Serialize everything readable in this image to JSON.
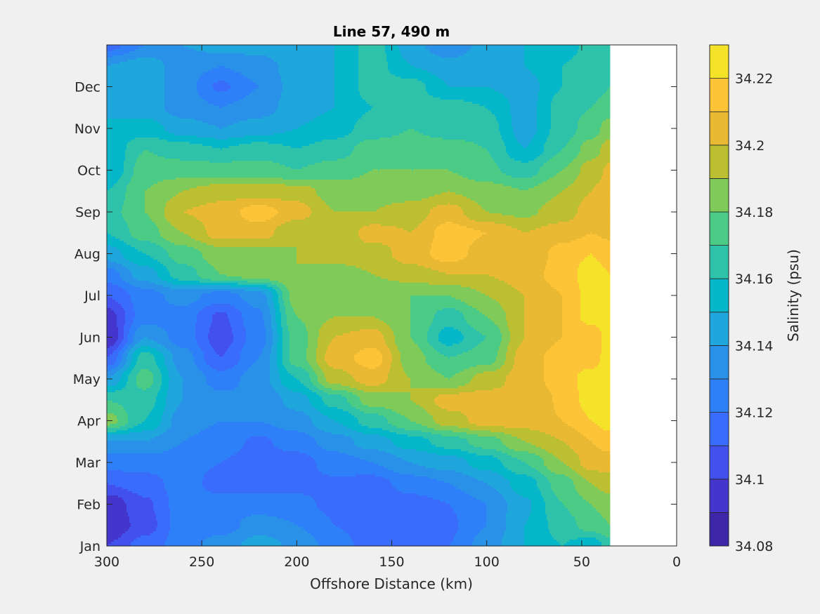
{
  "chart_data": {
    "type": "heatmap",
    "subtype": "filled-contour",
    "title": "Line 57, 490 m",
    "xlabel": "Offshore Distance (km)",
    "ylabel": "",
    "xlim": [
      300,
      0
    ],
    "ylim": [
      1,
      13
    ],
    "x_data_extent": [
      300,
      35
    ],
    "xticks": [
      300,
      250,
      200,
      150,
      100,
      50,
      0
    ],
    "xtick_labels": [
      "300",
      "250",
      "200",
      "150",
      "100",
      "50",
      "0"
    ],
    "yticks": [
      1,
      2,
      3,
      4,
      5,
      6,
      7,
      8,
      9,
      10,
      11,
      12
    ],
    "ytick_labels": [
      "Jan",
      "Feb",
      "Mar",
      "Apr",
      "May",
      "Jun",
      "Jul",
      "Aug",
      "Sep",
      "Oct",
      "Nov",
      "Dec"
    ],
    "colorbar": {
      "label": "Salinity (psu)",
      "range": [
        34.08,
        34.23
      ],
      "level_step": 0.01,
      "ticks": [
        34.08,
        34.1,
        34.12,
        34.14,
        34.16,
        34.18,
        34.2,
        34.22
      ],
      "tick_labels": [
        "34.08",
        "34.1",
        "34.12",
        "34.14",
        "34.16",
        "34.18",
        "34.2",
        "34.22"
      ],
      "colors": [
        "#3e26a8",
        "#4436cc",
        "#4250ee",
        "#3a6cfc",
        "#2e80f8",
        "#2a91e8",
        "#1fa6dc",
        "#06b7c9",
        "#2ec2aa",
        "#4ccb86",
        "#80ca5a",
        "#bbbf31",
        "#eab933",
        "#fec438",
        "#f5e32a"
      ]
    },
    "grid": {
      "distance_km": [
        300,
        280,
        260,
        240,
        220,
        200,
        180,
        160,
        140,
        120,
        100,
        80,
        60,
        45,
        35
      ],
      "month": [
        1,
        1.5,
        2,
        2.5,
        3,
        3.5,
        4,
        4.5,
        5,
        5.5,
        6,
        6.5,
        7,
        7.5,
        8,
        8.5,
        9,
        9.5,
        10,
        10.5,
        11,
        11.5,
        12,
        12.5,
        13
      ],
      "level_index_rows": [
        [
          2,
          3.5,
          4.5,
          5.5,
          6.5,
          5.8,
          4.5,
          3.5,
          3.5,
          4,
          5.5,
          7,
          8,
          7.2,
          8.5
        ],
        [
          1,
          2.5,
          4.5,
          4.5,
          5.5,
          5,
          4,
          3.5,
          3.5,
          3.8,
          5,
          7,
          8.5,
          9.5,
          10
        ],
        [
          1.2,
          2.8,
          4.5,
          4.5,
          4.5,
          4.2,
          3.8,
          3,
          3.5,
          4,
          5,
          6.8,
          9,
          10,
          10.5
        ],
        [
          3,
          3.5,
          4.5,
          3.5,
          3.5,
          3.8,
          3.8,
          3.5,
          4.5,
          5,
          6,
          7.5,
          9.5,
          11,
          11.5
        ],
        [
          4.5,
          4.5,
          4.5,
          4,
          3.5,
          3.5,
          4.5,
          5,
          6,
          6.5,
          7.5,
          9,
          11,
          12.5,
          12.5
        ],
        [
          6,
          6,
          5,
          4.5,
          3.8,
          4.5,
          5.5,
          6.5,
          7.5,
          8.5,
          9.5,
          11,
          12,
          13,
          13.5
        ],
        [
          10.5,
          8,
          5.5,
          5,
          5,
          5.5,
          7,
          8.5,
          10,
          11.5,
          12.5,
          12.5,
          13,
          14,
          14.5
        ],
        [
          9,
          8.5,
          6,
          5.3,
          5,
          6.5,
          8.5,
          10.5,
          11,
          12.5,
          12.5,
          12,
          13.2,
          14.5,
          14.5
        ],
        [
          6,
          9.5,
          6,
          4.5,
          5.5,
          8,
          11.5,
          12.5,
          11,
          10,
          11.5,
          12.5,
          13.5,
          14.5,
          14.5
        ],
        [
          3,
          8.5,
          5.5,
          3,
          5,
          9.5,
          12.5,
          13.5,
          10.5,
          9,
          9.5,
          12.5,
          13.5,
          13.5,
          14.5
        ],
        [
          1,
          6,
          4.5,
          2.5,
          4.5,
          9.5,
          12,
          12.5,
          10,
          7.5,
          9,
          12,
          13,
          13.2,
          14.5
        ],
        [
          1.5,
          4.5,
          4.5,
          2.8,
          4.8,
          10,
          11,
          11,
          10,
          8.5,
          10,
          12,
          13,
          14.5,
          14.5
        ],
        [
          3,
          4.5,
          5.5,
          4.5,
          5.5,
          10.5,
          11,
          10,
          10,
          10,
          11,
          12,
          13,
          14.5,
          14.5
        ],
        [
          4.5,
          6.5,
          8.5,
          10,
          10.5,
          11,
          10.5,
          11,
          11.5,
          12,
          12,
          12.5,
          13.5,
          14.5,
          14
        ],
        [
          6.5,
          8,
          9.5,
          10.5,
          10.5,
          11,
          11.5,
          11.5,
          12.5,
          13.5,
          12.5,
          12,
          13.5,
          14,
          13.5
        ],
        [
          8,
          9.5,
          11,
          12.5,
          12.5,
          11,
          11,
          12.5,
          12,
          13.5,
          13,
          12,
          12.5,
          13,
          12.8
        ],
        [
          8.5,
          10,
          12,
          12.5,
          13.5,
          12.5,
          11,
          11,
          11.5,
          12.5,
          11,
          10.8,
          11.5,
          12.5,
          12.5
        ],
        [
          8,
          10,
          11,
          11.5,
          11.5,
          11.5,
          10.5,
          10.5,
          10.5,
          11,
          10.5,
          10,
          11,
          12,
          12.5
        ],
        [
          7,
          9.5,
          9.5,
          9.5,
          9.5,
          9,
          9.5,
          10,
          10,
          10,
          9.2,
          8.5,
          10,
          11.5,
          12.2
        ],
        [
          7,
          9,
          8.5,
          8,
          8.5,
          8,
          8.5,
          9.5,
          9.5,
          9.5,
          9,
          7,
          9,
          10.5,
          11.5
        ],
        [
          7,
          7.5,
          6.5,
          6,
          6.5,
          7,
          7.5,
          8.5,
          9,
          8.5,
          8.5,
          6.5,
          8.5,
          9.5,
          10.5
        ],
        [
          7,
          6.5,
          5.5,
          5,
          5.5,
          6.5,
          7,
          8,
          8.5,
          8.5,
          8,
          6.5,
          8.5,
          9,
          9.5
        ],
        [
          7,
          6.5,
          5.5,
          3.8,
          5,
          6.5,
          7,
          8.5,
          8.5,
          7,
          7,
          6.5,
          8,
          8.5,
          9
        ],
        [
          6,
          6.5,
          5.5,
          5,
          5.5,
          6.5,
          7,
          8.5,
          7,
          6.5,
          7,
          7,
          8,
          8.5,
          8.5
        ],
        [
          3.5,
          5,
          6,
          6.5,
          6.5,
          7,
          7,
          8.5,
          6.5,
          5,
          6.5,
          7,
          7.5,
          8.3,
          8.3
        ]
      ],
      "level_index_note": "salinity = 34.08 + 0.01 * level_index"
    }
  }
}
